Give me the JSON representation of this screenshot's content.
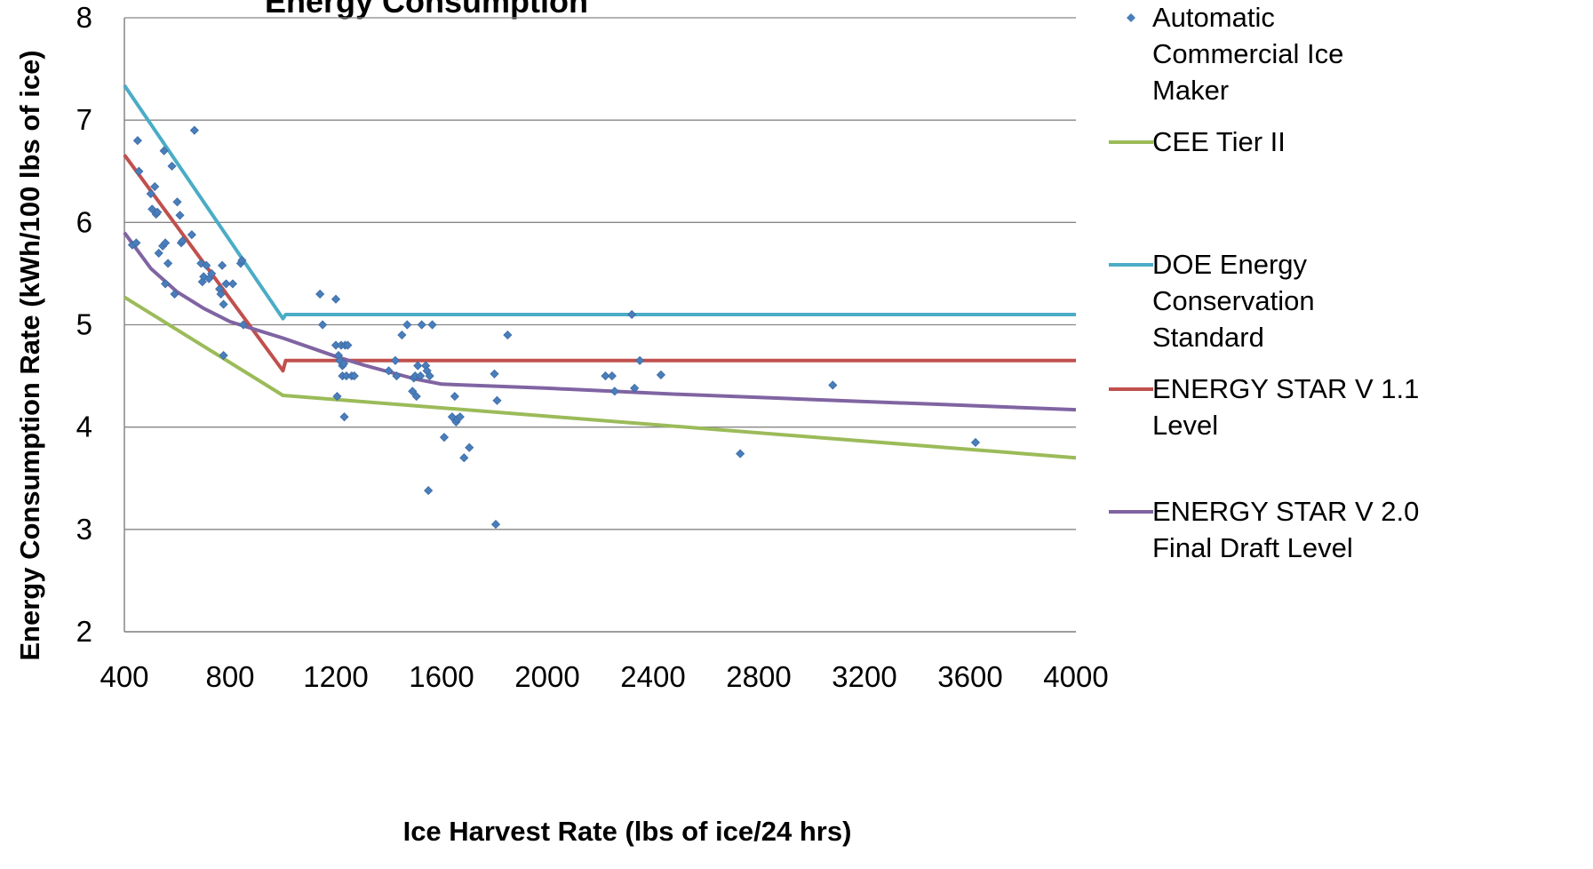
{
  "chart_data": {
    "type": "scatter",
    "title": "Energy Consumption",
    "xlabel": "Ice Harvest Rate (lbs of ice/24 hrs)",
    "ylabel": "Energy Consumption Rate (kWh/100 lbs of ice)",
    "xlim": [
      400,
      4000
    ],
    "ylim": [
      2,
      8
    ],
    "x_ticks": [
      "400",
      "800",
      "1200",
      "1600",
      "2000",
      "2400",
      "2800",
      "3200",
      "3600",
      "4000"
    ],
    "y_ticks": [
      "2",
      "3",
      "4",
      "5",
      "6",
      "7",
      "8"
    ],
    "grid": "horizontal",
    "legend_position": "right",
    "series": [
      {
        "name": "Automatic Commercial Ice Maker",
        "kind": "scatter",
        "marker": "diamond",
        "color": "#4a7ebb",
        "points": [
          [
            430,
            5.78
          ],
          [
            445,
            5.8
          ],
          [
            450,
            6.8
          ],
          [
            455,
            6.5
          ],
          [
            500,
            6.28
          ],
          [
            505,
            6.13
          ],
          [
            515,
            6.35
          ],
          [
            520,
            6.08
          ],
          [
            525,
            6.1
          ],
          [
            530,
            5.7
          ],
          [
            545,
            5.77
          ],
          [
            550,
            6.7
          ],
          [
            555,
            5.8
          ],
          [
            555,
            5.4
          ],
          [
            565,
            5.6
          ],
          [
            580,
            6.55
          ],
          [
            590,
            5.3
          ],
          [
            600,
            6.2
          ],
          [
            610,
            6.07
          ],
          [
            615,
            5.8
          ],
          [
            620,
            5.82
          ],
          [
            655,
            5.88
          ],
          [
            665,
            6.9
          ],
          [
            690,
            5.6
          ],
          [
            695,
            5.42
          ],
          [
            700,
            5.47
          ],
          [
            710,
            5.58
          ],
          [
            720,
            5.45
          ],
          [
            730,
            5.5
          ],
          [
            760,
            5.35
          ],
          [
            765,
            5.3
          ],
          [
            770,
            5.58
          ],
          [
            775,
            5.2
          ],
          [
            775,
            4.7
          ],
          [
            785,
            5.4
          ],
          [
            810,
            5.4
          ],
          [
            840,
            5.6
          ],
          [
            845,
            5.63
          ],
          [
            850,
            5.0
          ],
          [
            1140,
            5.3
          ],
          [
            1150,
            5.0
          ],
          [
            1200,
            5.25
          ],
          [
            1200,
            4.8
          ],
          [
            1205,
            4.3
          ],
          [
            1210,
            4.7
          ],
          [
            1215,
            4.65
          ],
          [
            1220,
            4.8
          ],
          [
            1225,
            4.5
          ],
          [
            1225,
            4.6
          ],
          [
            1230,
            4.62
          ],
          [
            1232,
            4.1
          ],
          [
            1235,
            4.8
          ],
          [
            1240,
            4.5
          ],
          [
            1245,
            4.8
          ],
          [
            1260,
            4.5
          ],
          [
            1270,
            4.5
          ],
          [
            1400,
            4.55
          ],
          [
            1425,
            4.65
          ],
          [
            1430,
            4.5
          ],
          [
            1450,
            4.9
          ],
          [
            1470,
            5.0
          ],
          [
            1490,
            4.35
          ],
          [
            1495,
            4.48
          ],
          [
            1500,
            4.5
          ],
          [
            1505,
            4.3
          ],
          [
            1510,
            4.6
          ],
          [
            1520,
            4.5
          ],
          [
            1525,
            5.0
          ],
          [
            1540,
            4.6
          ],
          [
            1545,
            4.55
          ],
          [
            1550,
            3.38
          ],
          [
            1555,
            4.5
          ],
          [
            1565,
            5.0
          ],
          [
            1610,
            3.9
          ],
          [
            1640,
            4.1
          ],
          [
            1650,
            4.3
          ],
          [
            1655,
            4.05
          ],
          [
            1660,
            4.08
          ],
          [
            1670,
            4.1
          ],
          [
            1685,
            3.7
          ],
          [
            1705,
            3.8
          ],
          [
            1800,
            4.52
          ],
          [
            1805,
            3.05
          ],
          [
            1810,
            4.26
          ],
          [
            1850,
            4.9
          ],
          [
            2220,
            4.5
          ],
          [
            2245,
            4.5
          ],
          [
            2255,
            4.35
          ],
          [
            2320,
            5.1
          ],
          [
            2330,
            4.38
          ],
          [
            2350,
            4.65
          ],
          [
            2430,
            4.51
          ],
          [
            2730,
            3.74
          ],
          [
            3080,
            4.41
          ],
          [
            3620,
            3.85
          ]
        ]
      },
      {
        "name": "CEE Tier II",
        "kind": "line",
        "color": "#9bbb59",
        "points": [
          [
            400,
            5.27
          ],
          [
            1000,
            4.31
          ],
          [
            4000,
            3.7
          ]
        ]
      },
      {
        "name": "DOE Energy Conservation Standard",
        "kind": "line",
        "color": "#4bacc6",
        "points": [
          [
            400,
            7.34
          ],
          [
            1000,
            5.06
          ],
          [
            1010,
            5.1
          ],
          [
            4000,
            5.1
          ]
        ]
      },
      {
        "name": "ENERGY STAR V 1.1 Level",
        "kind": "line",
        "color": "#c0504d",
        "points": [
          [
            400,
            6.66
          ],
          [
            1000,
            4.55
          ],
          [
            1010,
            4.65
          ],
          [
            4000,
            4.65
          ]
        ]
      },
      {
        "name": "ENERGY STAR V 2.0 Final Draft Level",
        "kind": "line",
        "color": "#8064a2",
        "points": [
          [
            400,
            5.9
          ],
          [
            500,
            5.55
          ],
          [
            600,
            5.32
          ],
          [
            700,
            5.16
          ],
          [
            800,
            5.03
          ],
          [
            900,
            4.95
          ],
          [
            1000,
            4.87
          ],
          [
            1100,
            4.78
          ],
          [
            1200,
            4.69
          ],
          [
            1300,
            4.61
          ],
          [
            1400,
            4.54
          ],
          [
            1500,
            4.47
          ],
          [
            1600,
            4.42
          ],
          [
            2000,
            4.38
          ],
          [
            2500,
            4.32
          ],
          [
            3000,
            4.27
          ],
          [
            3500,
            4.22
          ],
          [
            4000,
            4.17
          ]
        ]
      }
    ],
    "legend": [
      {
        "label_lines": [
          "Automatic",
          "Commercial Ice",
          "Maker"
        ],
        "symbol": "diamond",
        "color": "#4a7ebb"
      },
      {
        "label_lines": [
          "CEE Tier II"
        ],
        "symbol": "line",
        "color": "#9bbb59"
      },
      {
        "label_lines": [
          "DOE Energy",
          "Conservation",
          "Standard"
        ],
        "symbol": "line",
        "color": "#4bacc6"
      },
      {
        "label_lines": [
          "ENERGY STAR V 1.1",
          "Level"
        ],
        "symbol": "line",
        "color": "#c0504d"
      },
      {
        "label_lines": [
          "ENERGY STAR V 2.0",
          "Final Draft Level"
        ],
        "symbol": "line",
        "color": "#8064a2"
      }
    ]
  }
}
